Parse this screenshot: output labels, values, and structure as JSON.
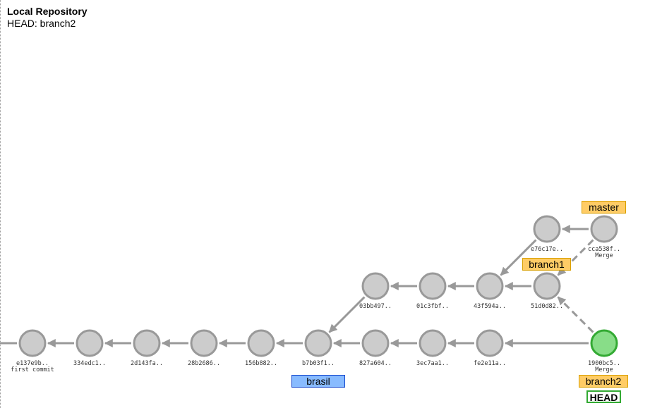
{
  "header": {
    "title": "Local Repository",
    "head_label": "HEAD: branch2"
  },
  "commits": [
    {
      "id": "e137e9b..",
      "message": "first commit",
      "head": false
    },
    {
      "id": "334edc1..",
      "message": "",
      "head": false
    },
    {
      "id": "2d143fa..",
      "message": "",
      "head": false
    },
    {
      "id": "28b2686..",
      "message": "",
      "head": false
    },
    {
      "id": "156b882..",
      "message": "",
      "head": false
    },
    {
      "id": "b7b03f1..",
      "message": "",
      "head": false
    },
    {
      "id": "827a604..",
      "message": "",
      "head": false
    },
    {
      "id": "3ec7aa1..",
      "message": "",
      "head": false
    },
    {
      "id": "fe2e11a..",
      "message": "",
      "head": false
    },
    {
      "id": "1900bc5..",
      "message": "Merge",
      "head": true
    },
    {
      "id": "03bb497..",
      "message": "",
      "head": false
    },
    {
      "id": "01c3fbf..",
      "message": "",
      "head": false
    },
    {
      "id": "43f594a..",
      "message": "",
      "head": false
    },
    {
      "id": "51d0d82..",
      "message": "",
      "head": false
    },
    {
      "id": "e76c17e..",
      "message": "",
      "head": false
    },
    {
      "id": "cca538f..",
      "message": "Merge",
      "head": false
    }
  ],
  "refs": {
    "master": "master",
    "branch1": "branch1",
    "branch2": "branch2",
    "remote": "brasil",
    "head": "HEAD"
  },
  "colors": {
    "commit_fill": "#cccccc",
    "commit_stroke": "#999999",
    "head_fill": "#88dd88",
    "head_stroke": "#33aa33",
    "edge": "#999999",
    "branch_tag": "#ffcc66",
    "remote_tag": "#88bbff",
    "head_tag_border": "#33aa33"
  }
}
